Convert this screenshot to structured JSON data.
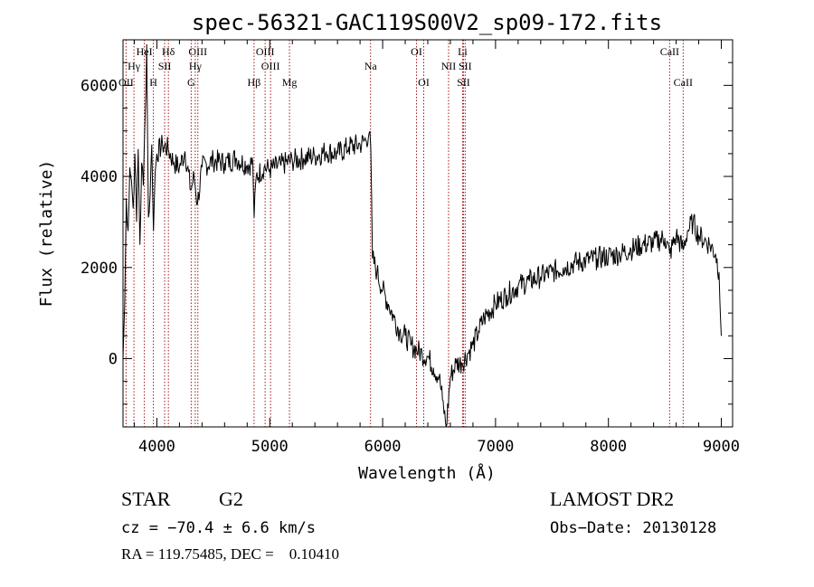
{
  "chart_data": {
    "type": "line",
    "title": "spec-56321-GAC119S00V2_sp09-172.fits",
    "xlabel": "Wavelength (Å)",
    "ylabel": "Flux (relative)",
    "xlim": [
      3700,
      9100
    ],
    "ylim": [
      -1500,
      7000
    ],
    "xticks_major": [
      4000,
      5000,
      6000,
      7000,
      8000,
      9000
    ],
    "xticks_minor_step": 200,
    "yticks_major": [
      0,
      2000,
      4000,
      6000
    ],
    "yticks_minor_step": 500,
    "grid": false,
    "line_color": "#000000",
    "marker_color": "#a01818",
    "series": [
      {
        "x": [
          3700,
          3715,
          3730,
          3745,
          3760,
          3775,
          3790,
          3805,
          3820,
          3835,
          3850,
          3865,
          3880,
          3895,
          3910,
          3925,
          3940,
          3955,
          3970,
          3985,
          4000,
          4050,
          4100,
          4150,
          4200,
          4250,
          4300,
          4330,
          4360,
          4400,
          4500,
          4600,
          4700,
          4800,
          4850,
          4862,
          4880,
          4950,
          5000,
          5100,
          5200,
          5300,
          5400,
          5500,
          5600,
          5700,
          5800,
          5850,
          5880,
          5895,
          5910,
          5950,
          6000,
          6050,
          6100,
          6150,
          6200,
          6250,
          6300,
          6350,
          6400,
          6450,
          6500,
          6530,
          6563,
          6600,
          6650,
          6700,
          6750,
          6800,
          6850,
          6900,
          7000,
          7100,
          7200,
          7300,
          7400,
          7500,
          7600,
          7700,
          7800,
          7900,
          8000,
          8100,
          8200,
          8300,
          8400,
          8500,
          8542,
          8600,
          8662,
          8700,
          8750,
          8800,
          8850,
          8900,
          8950,
          8980,
          9000
        ],
        "y": [
          0,
          1200,
          3500,
          2800,
          4200,
          3900,
          3300,
          4500,
          3000,
          4600,
          2500,
          4300,
          3800,
          5200,
          6900,
          3100,
          3600,
          4700,
          2800,
          4100,
          4500,
          4700,
          4600,
          4300,
          4200,
          4550,
          3700,
          4000,
          3400,
          4200,
          4350,
          4300,
          4400,
          4250,
          4300,
          3100,
          4000,
          4200,
          4150,
          4250,
          4350,
          4400,
          4450,
          4550,
          4500,
          4650,
          4700,
          4800,
          4950,
          4600,
          2200,
          1900,
          1500,
          1200,
          900,
          600,
          500,
          300,
          200,
          100,
          50,
          -200,
          -400,
          -900,
          -1500,
          -400,
          -100,
          -100,
          100,
          300,
          600,
          900,
          1200,
          1400,
          1600,
          1700,
          1800,
          1900,
          2000,
          2100,
          2150,
          2200,
          2250,
          2300,
          2400,
          2500,
          2550,
          2650,
          2300,
          2700,
          2400,
          2800,
          3000,
          2700,
          2600,
          2500,
          2300,
          1900,
          500
        ]
      }
    ],
    "line_markers": {
      "top_row1": [
        {
          "label": "HeI",
          "x": 3889
        },
        {
          "label": "Hδ",
          "x": 4102
        },
        {
          "label": "OIII",
          "x": 4363
        },
        {
          "label": "OIII",
          "x": 4959
        },
        {
          "label": "OI",
          "x": 6300
        },
        {
          "label": "Li",
          "x": 6708
        },
        {
          "label": "CaII",
          "x": 8542
        }
      ],
      "top_row2": [
        {
          "label": "Hγ",
          "x": 3797
        },
        {
          "label": "SII",
          "x": 4069
        },
        {
          "label": "Hγ",
          "x": 4340
        },
        {
          "label": "OIII",
          "x": 5007
        },
        {
          "label": "Na",
          "x": 5893
        },
        {
          "label": "NII",
          "x": 6584
        },
        {
          "label": "SII",
          "x": 6731
        }
      ],
      "top_row3": [
        {
          "label": "OII",
          "x": 3727
        },
        {
          "label": "H",
          "x": 3969
        },
        {
          "label": "G",
          "x": 4304
        },
        {
          "label": "Hβ",
          "x": 4861
        },
        {
          "label": "Mg",
          "x": 5175
        },
        {
          "label": "OI",
          "x": 6364
        },
        {
          "label": "SII",
          "x": 6716
        },
        {
          "label": "CaII",
          "x": 8662
        }
      ]
    }
  },
  "info": {
    "class": "STAR",
    "subclass": "G2",
    "survey": "LAMOST DR2",
    "cz": "cz = −70.4 ± 6.6 km/s",
    "obsdate": "Obs−Date: 20130128",
    "radec": "RA = 119.75485, DEC =    0.10410"
  }
}
